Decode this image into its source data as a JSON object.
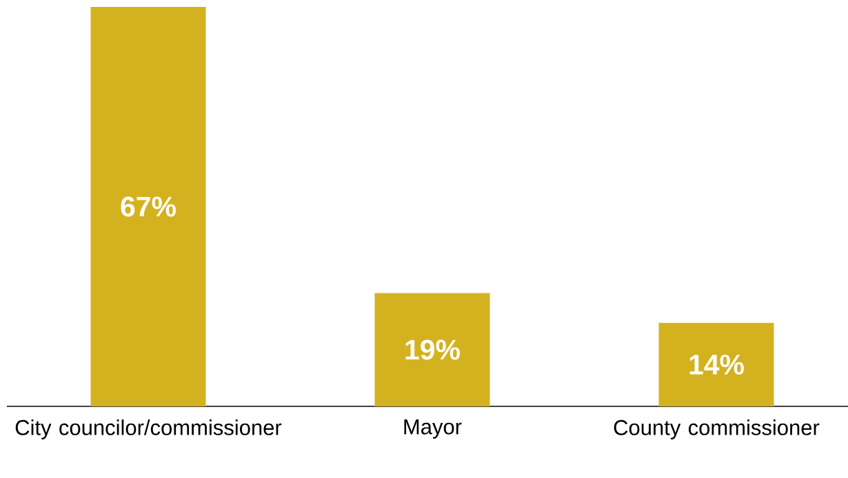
{
  "chart_data": {
    "type": "bar",
    "categories": [
      "City councilor/commissioner",
      "Mayor",
      "County commissioner"
    ],
    "values": [
      67,
      19,
      14
    ],
    "value_labels": [
      "67%",
      "19%",
      "14%"
    ],
    "color": "#d4b21f"
  }
}
